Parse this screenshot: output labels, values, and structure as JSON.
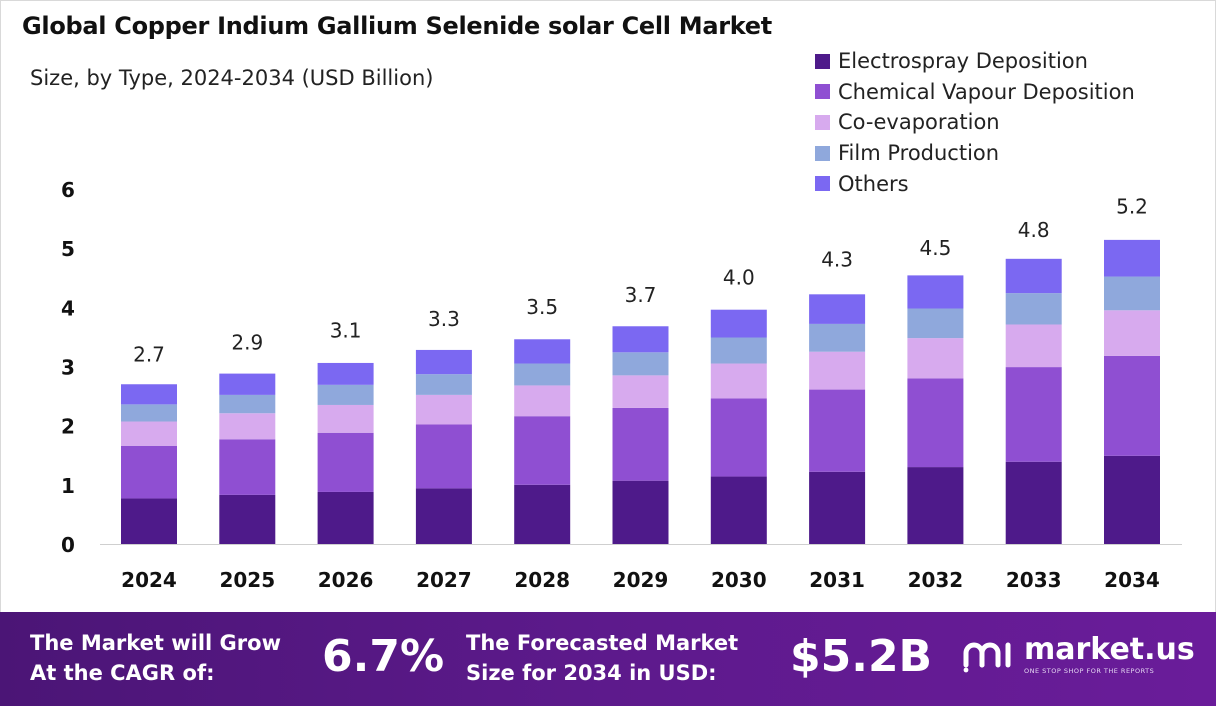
{
  "title": "Global Copper Indium Gallium Selenide solar Cell Market",
  "subtitle": "Size, by Type, 2024-2034 (USD Billion)",
  "colors": {
    "electrospray": "#4e1a8a",
    "chemical_vapour": "#8f4fd2",
    "co_evaporation": "#d7aaee",
    "film_production": "#8fa8dc",
    "others": "#7b68f2",
    "footer_bg": "#5b1a8a"
  },
  "chart_data": {
    "type": "bar",
    "stacked": true,
    "title": "Global Copper Indium Gallium Selenide solar Cell Market",
    "subtitle": "Size, by Type, 2024-2034 (USD Billion)",
    "xlabel": "",
    "ylabel": "",
    "ylim": [
      0,
      6
    ],
    "yticks": [
      "0",
      "1",
      "2",
      "3",
      "4",
      "5",
      "6"
    ],
    "grid": false,
    "legend_position": "top-right",
    "categories": [
      "2024",
      "2025",
      "2026",
      "2027",
      "2028",
      "2029",
      "2030",
      "2031",
      "2032",
      "2033",
      "2034"
    ],
    "series": [
      {
        "name": "Electrospray Deposition",
        "color": "#4e1a8a",
        "values": [
          0.77,
          0.83,
          0.88,
          0.94,
          1.0,
          1.07,
          1.14,
          1.22,
          1.3,
          1.39,
          1.49
        ]
      },
      {
        "name": "Chemical Vapour Deposition",
        "color": "#8f4fd2",
        "values": [
          0.89,
          0.94,
          1.0,
          1.08,
          1.16,
          1.23,
          1.32,
          1.39,
          1.5,
          1.6,
          1.69
        ]
      },
      {
        "name": "Co-evaporation",
        "color": "#d7aaee",
        "values": [
          0.41,
          0.44,
          0.47,
          0.5,
          0.52,
          0.55,
          0.59,
          0.64,
          0.68,
          0.72,
          0.77
        ]
      },
      {
        "name": "Film Production",
        "color": "#8fa8dc",
        "values": [
          0.29,
          0.31,
          0.34,
          0.35,
          0.37,
          0.39,
          0.44,
          0.47,
          0.5,
          0.53,
          0.57
        ]
      },
      {
        "name": "Others",
        "color": "#7b68f2",
        "values": [
          0.34,
          0.36,
          0.37,
          0.41,
          0.41,
          0.44,
          0.47,
          0.5,
          0.56,
          0.58,
          0.62
        ]
      }
    ],
    "totals": [
      2.7,
      2.9,
      3.1,
      3.3,
      3.5,
      3.7,
      4.0,
      4.3,
      4.5,
      4.8,
      5.2
    ],
    "total_labels": [
      "2.7",
      "2.9",
      "3.1",
      "3.3",
      "3.5",
      "3.7",
      "4.0",
      "4.3",
      "4.5",
      "4.8",
      "5.2"
    ]
  },
  "footer": {
    "cagr_label_line1": "The Market will Grow",
    "cagr_label_line2": "At the CAGR of:",
    "cagr_value": "6.7%",
    "forecast_label_line1": "The Forecasted Market",
    "forecast_label_line2": "Size for 2034 in USD:",
    "forecast_value": "$5.2B",
    "brand_name": "market.us",
    "brand_tagline": "ONE STOP SHOP FOR THE REPORTS"
  }
}
